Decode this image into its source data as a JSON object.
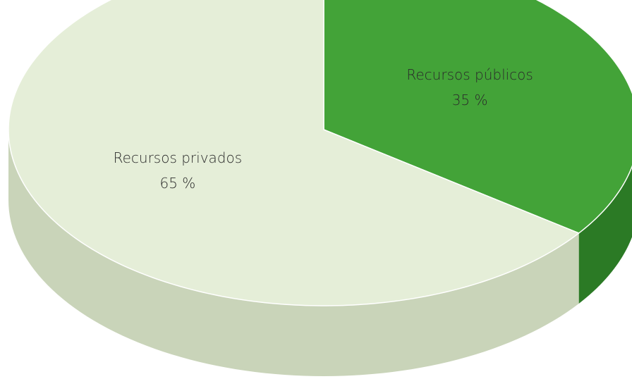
{
  "chart_data": {
    "type": "pie",
    "style": "3d",
    "categories": [
      "Recursos públicos",
      "Recursos privados"
    ],
    "values": [
      35,
      65
    ],
    "labels": [
      "35 %",
      "65 %"
    ],
    "colors": {
      "top": [
        "#43a338",
        "#e5eed8"
      ],
      "side": [
        "#2b7a25",
        "#c9d4b9"
      ]
    },
    "start_angle": "12 o'clock, clockwise",
    "legend": "none"
  }
}
